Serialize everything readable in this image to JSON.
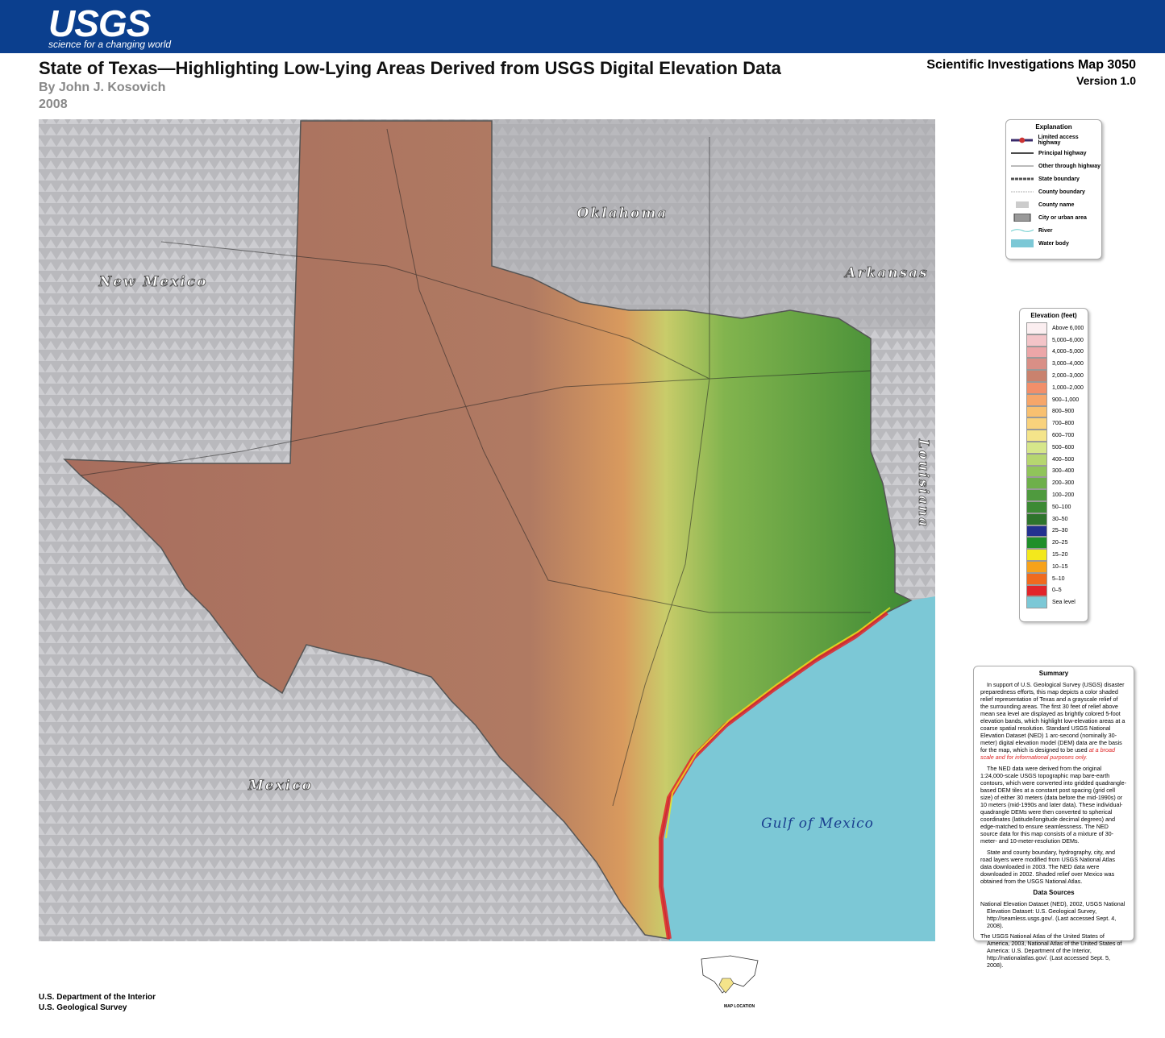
{
  "header": {
    "logo": "USGS",
    "tagline": "science for a changing world",
    "title": "State of Texas—Highlighting Low-Lying Areas Derived from USGS Digital Elevation Data",
    "author": "By John J. Kosovich",
    "year": "2008",
    "series": "Scientific Investigations Map 3050",
    "version": "Version 1.0"
  },
  "map": {
    "labels": [
      "New Mexico",
      "Oklahoma",
      "Arkansas",
      "Louisiana",
      "Mexico",
      "Gulf of Mexico"
    ]
  },
  "explanation": {
    "title": "Explanation",
    "items": [
      "Limited access highway",
      "Principal highway",
      "Other through highway",
      "State boundary",
      "County boundary",
      "County name",
      "City or urban area",
      "River",
      "Water body"
    ]
  },
  "elevation": {
    "title": "Elevation (feet)",
    "bands": [
      {
        "label": "Above 6,000",
        "color": "#fbeef0"
      },
      {
        "label": "5,000–6,000",
        "color": "#f3c4c8"
      },
      {
        "label": "4,000–5,000",
        "color": "#eca6a8"
      },
      {
        "label": "3,000–4,000",
        "color": "#d98f86"
      },
      {
        "label": "2,000–3,000",
        "color": "#c9826e"
      },
      {
        "label": "1,000–2,000",
        "color": "#f28f6a"
      },
      {
        "label": "900–1,000",
        "color": "#f6a66a"
      },
      {
        "label": "800–900",
        "color": "#f8c070"
      },
      {
        "label": "700–800",
        "color": "#f9d27c"
      },
      {
        "label": "600–700",
        "color": "#f4e48a"
      },
      {
        "label": "500–600",
        "color": "#d6e68a"
      },
      {
        "label": "400–500",
        "color": "#b6d670"
      },
      {
        "label": "300–400",
        "color": "#90c45a"
      },
      {
        "label": "200–300",
        "color": "#6eb04a"
      },
      {
        "label": "100–200",
        "color": "#4f9a3e"
      },
      {
        "label": "50–100",
        "color": "#3c8a34"
      },
      {
        "label": "30–50",
        "color": "#2e742c"
      },
      {
        "label": "25–30",
        "color": "#23318f"
      },
      {
        "label": "20–25",
        "color": "#1f8f2a"
      },
      {
        "label": "15–20",
        "color": "#f3e81c"
      },
      {
        "label": "10–15",
        "color": "#f7a21a"
      },
      {
        "label": "5–10",
        "color": "#f06a1e"
      },
      {
        "label": "0–5",
        "color": "#e2242a"
      },
      {
        "label": "Sea level",
        "color": "#7cc8d6"
      }
    ]
  },
  "summary": {
    "title": "Summary",
    "p1": "In support of U.S. Geological Survey (USGS) disaster preparedness efforts, this map depicts a color shaded relief representation of Texas and a grayscale relief of the surrounding areas. The first 30 feet of relief above mean sea level are displayed as brightly colored 5-foot elevation bands, which highlight low-elevation areas at a coarse spatial resolution. Standard USGS National Elevation Dataset (NED) 1 arc-second (nominally 30-meter) digital elevation model (DEM) data are the basis for the map, which is designed to be used",
    "p1_emphasis": "at a broad scale and for informational purposes only.",
    "p2": "The NED data were derived from the original 1:24,000-scale USGS topographic map bare-earth contours, which were converted into gridded quadrangle-based DEM tiles at a constant post spacing (grid cell size) of either 30 meters (data before the mid-1990s) or 10 meters (mid-1990s and later data). These individual-quadrangle DEMs were then converted to spherical coordinates (latitude/longitude decimal degrees) and edge-matched to ensure seamlessness. The NED source data for this map consists of a mixture of 30-meter- and 10-meter-resolution DEMs.",
    "p3": "State and county boundary, hydrography, city, and road layers were modified from USGS National Atlas data downloaded in 2003. The NED data were downloaded in 2002. Shaded relief over Mexico was obtained from the USGS National Atlas."
  },
  "data_sources": {
    "title": "Data Sources",
    "items": [
      "National Elevation Dataset (NED), 2002, USGS National Elevation Dataset: U.S. Geological Survey, http://seamless.usgs.gov/. (Last accessed Sept. 4, 2008).",
      "The USGS National Atlas of the United States of America, 2003, National Atlas of the United States of America: U.S. Department of the Interior, http://nationalatlas.gov/. (Last accessed Sept. 5, 2008)."
    ]
  },
  "footer": {
    "department": "U.S. Department of the Interior",
    "survey": "U.S. Geological Survey",
    "map_location": "MAP LOCATION"
  }
}
